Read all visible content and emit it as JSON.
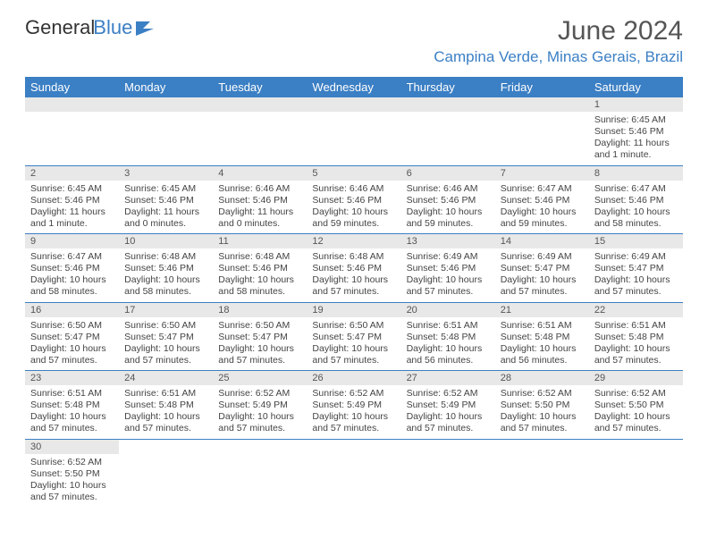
{
  "logo": {
    "text1": "General",
    "text2": "Blue"
  },
  "title": {
    "month": "June 2024",
    "location": "Campina Verde, Minas Gerais, Brazil"
  },
  "colors": {
    "header_bg": "#3b7fc4",
    "header_text": "#ffffff",
    "daynum_bg": "#e8e8e8",
    "border": "#3b7fc4",
    "logo_blue": "#3b7fc4"
  },
  "dayNames": [
    "Sunday",
    "Monday",
    "Tuesday",
    "Wednesday",
    "Thursday",
    "Friday",
    "Saturday"
  ],
  "firstDayOffset": 6,
  "daysInMonth": 30,
  "days": {
    "1": {
      "sunrise": "6:45 AM",
      "sunset": "5:46 PM",
      "daylight": "11 hours and 1 minute."
    },
    "2": {
      "sunrise": "6:45 AM",
      "sunset": "5:46 PM",
      "daylight": "11 hours and 1 minute."
    },
    "3": {
      "sunrise": "6:45 AM",
      "sunset": "5:46 PM",
      "daylight": "11 hours and 0 minutes."
    },
    "4": {
      "sunrise": "6:46 AM",
      "sunset": "5:46 PM",
      "daylight": "11 hours and 0 minutes."
    },
    "5": {
      "sunrise": "6:46 AM",
      "sunset": "5:46 PM",
      "daylight": "10 hours and 59 minutes."
    },
    "6": {
      "sunrise": "6:46 AM",
      "sunset": "5:46 PM",
      "daylight": "10 hours and 59 minutes."
    },
    "7": {
      "sunrise": "6:47 AM",
      "sunset": "5:46 PM",
      "daylight": "10 hours and 59 minutes."
    },
    "8": {
      "sunrise": "6:47 AM",
      "sunset": "5:46 PM",
      "daylight": "10 hours and 58 minutes."
    },
    "9": {
      "sunrise": "6:47 AM",
      "sunset": "5:46 PM",
      "daylight": "10 hours and 58 minutes."
    },
    "10": {
      "sunrise": "6:48 AM",
      "sunset": "5:46 PM",
      "daylight": "10 hours and 58 minutes."
    },
    "11": {
      "sunrise": "6:48 AM",
      "sunset": "5:46 PM",
      "daylight": "10 hours and 58 minutes."
    },
    "12": {
      "sunrise": "6:48 AM",
      "sunset": "5:46 PM",
      "daylight": "10 hours and 57 minutes."
    },
    "13": {
      "sunrise": "6:49 AM",
      "sunset": "5:46 PM",
      "daylight": "10 hours and 57 minutes."
    },
    "14": {
      "sunrise": "6:49 AM",
      "sunset": "5:47 PM",
      "daylight": "10 hours and 57 minutes."
    },
    "15": {
      "sunrise": "6:49 AM",
      "sunset": "5:47 PM",
      "daylight": "10 hours and 57 minutes."
    },
    "16": {
      "sunrise": "6:50 AM",
      "sunset": "5:47 PM",
      "daylight": "10 hours and 57 minutes."
    },
    "17": {
      "sunrise": "6:50 AM",
      "sunset": "5:47 PM",
      "daylight": "10 hours and 57 minutes."
    },
    "18": {
      "sunrise": "6:50 AM",
      "sunset": "5:47 PM",
      "daylight": "10 hours and 57 minutes."
    },
    "19": {
      "sunrise": "6:50 AM",
      "sunset": "5:47 PM",
      "daylight": "10 hours and 57 minutes."
    },
    "20": {
      "sunrise": "6:51 AM",
      "sunset": "5:48 PM",
      "daylight": "10 hours and 56 minutes."
    },
    "21": {
      "sunrise": "6:51 AM",
      "sunset": "5:48 PM",
      "daylight": "10 hours and 56 minutes."
    },
    "22": {
      "sunrise": "6:51 AM",
      "sunset": "5:48 PM",
      "daylight": "10 hours and 57 minutes."
    },
    "23": {
      "sunrise": "6:51 AM",
      "sunset": "5:48 PM",
      "daylight": "10 hours and 57 minutes."
    },
    "24": {
      "sunrise": "6:51 AM",
      "sunset": "5:48 PM",
      "daylight": "10 hours and 57 minutes."
    },
    "25": {
      "sunrise": "6:52 AM",
      "sunset": "5:49 PM",
      "daylight": "10 hours and 57 minutes."
    },
    "26": {
      "sunrise": "6:52 AM",
      "sunset": "5:49 PM",
      "daylight": "10 hours and 57 minutes."
    },
    "27": {
      "sunrise": "6:52 AM",
      "sunset": "5:49 PM",
      "daylight": "10 hours and 57 minutes."
    },
    "28": {
      "sunrise": "6:52 AM",
      "sunset": "5:50 PM",
      "daylight": "10 hours and 57 minutes."
    },
    "29": {
      "sunrise": "6:52 AM",
      "sunset": "5:50 PM",
      "daylight": "10 hours and 57 minutes."
    },
    "30": {
      "sunrise": "6:52 AM",
      "sunset": "5:50 PM",
      "daylight": "10 hours and 57 minutes."
    }
  },
  "labels": {
    "sunrise": "Sunrise:",
    "sunset": "Sunset:",
    "daylight": "Daylight:"
  }
}
